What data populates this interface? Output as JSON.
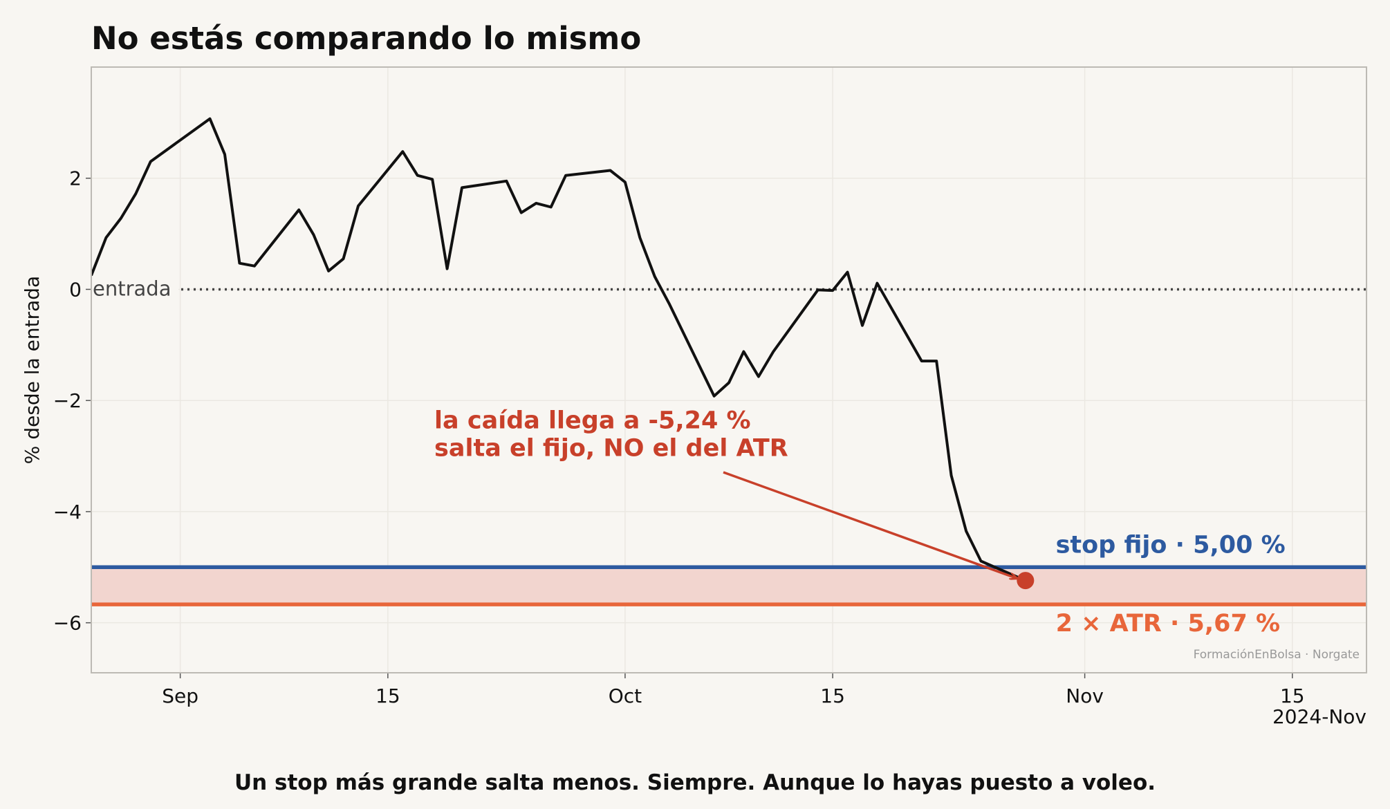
{
  "chart_data": {
    "type": "line",
    "title": "No estás comparando lo mismo",
    "ylabel": "% desde la entrada",
    "xlabel": "",
    "caption": "Un stop más grande salta menos. Siempre. Aunque lo hayas puesto a voleo.",
    "credit": "FormaciónEnBolsa · Norgate",
    "x_ticks": [
      {
        "date": "2024-09-01",
        "label": "Sep"
      },
      {
        "date": "2024-09-15",
        "label": "15"
      },
      {
        "date": "2024-10-01",
        "label": "Oct"
      },
      {
        "date": "2024-10-15",
        "label": "15"
      },
      {
        "date": "2024-11-01",
        "label": "Nov"
      },
      {
        "date": "2024-11-15",
        "label": "15"
      }
    ],
    "x_offset_label": "2024-Nov",
    "xlim": [
      "2024-08-26",
      "2024-11-20"
    ],
    "y_ticks": [
      2,
      0,
      -2,
      -4,
      -6
    ],
    "y_tick_labels": [
      "2",
      "0",
      "−2",
      "−4",
      "−6"
    ],
    "ylim": [
      -6.9,
      4.0
    ],
    "grid": true,
    "reference_lines": {
      "entry": {
        "value": 0,
        "label": "entrada",
        "color": "#444444"
      },
      "fixed_stop": {
        "value": -5.0,
        "label": "stop fijo · 5,00 %",
        "color": "#2d5aa0"
      },
      "atr_stop": {
        "value": -5.67,
        "label": "2 × ATR · 5,67 %",
        "color": "#e8663a"
      }
    },
    "band_color": "#f2d5cf",
    "line_color": "#111111",
    "series": [
      {
        "x": [
          "2024-08-26",
          "2024-08-27",
          "2024-08-28",
          "2024-08-29",
          "2024-08-30",
          "2024-09-03",
          "2024-09-04",
          "2024-09-05",
          "2024-09-06",
          "2024-09-09",
          "2024-09-10",
          "2024-09-11",
          "2024-09-12",
          "2024-09-13",
          "2024-09-16",
          "2024-09-17",
          "2024-09-18",
          "2024-09-19",
          "2024-09-20",
          "2024-09-23",
          "2024-09-24",
          "2024-09-25",
          "2024-09-26",
          "2024-09-27",
          "2024-09-30",
          "2024-10-01",
          "2024-10-02",
          "2024-10-03",
          "2024-10-04",
          "2024-10-07",
          "2024-10-08",
          "2024-10-09",
          "2024-10-10",
          "2024-10-11",
          "2024-10-14",
          "2024-10-15",
          "2024-10-16",
          "2024-10-17",
          "2024-10-18",
          "2024-10-21",
          "2024-10-22",
          "2024-10-23",
          "2024-10-24",
          "2024-10-25",
          "2024-10-28"
        ],
        "y": [
          0.25,
          0.93,
          1.28,
          1.72,
          2.3,
          3.07,
          2.43,
          0.47,
          0.42,
          1.43,
          0.98,
          0.33,
          0.55,
          1.5,
          2.48,
          2.05,
          1.98,
          0.37,
          1.83,
          1.95,
          1.38,
          1.55,
          1.48,
          2.05,
          2.14,
          1.93,
          0.93,
          0.23,
          -0.27,
          -1.92,
          -1.68,
          -1.12,
          -1.57,
          -1.12,
          -0.01,
          -0.02,
          0.31,
          -0.65,
          0.11,
          -1.29,
          -1.29,
          -3.35,
          -4.35,
          -4.89,
          -5.24
        ]
      }
    ],
    "marker": {
      "x": "2024-10-28",
      "y": -5.24,
      "color": "#c8402a"
    },
    "annotation": {
      "lines": [
        "la caída llega a -5,24 %",
        "salta el fijo, NO el del ATR"
      ],
      "color": "#c8402a",
      "xy": {
        "x": "2024-10-28",
        "y": -5.24
      },
      "text_pos": {
        "x": "2024-09-20",
        "y": -2.5
      }
    }
  }
}
